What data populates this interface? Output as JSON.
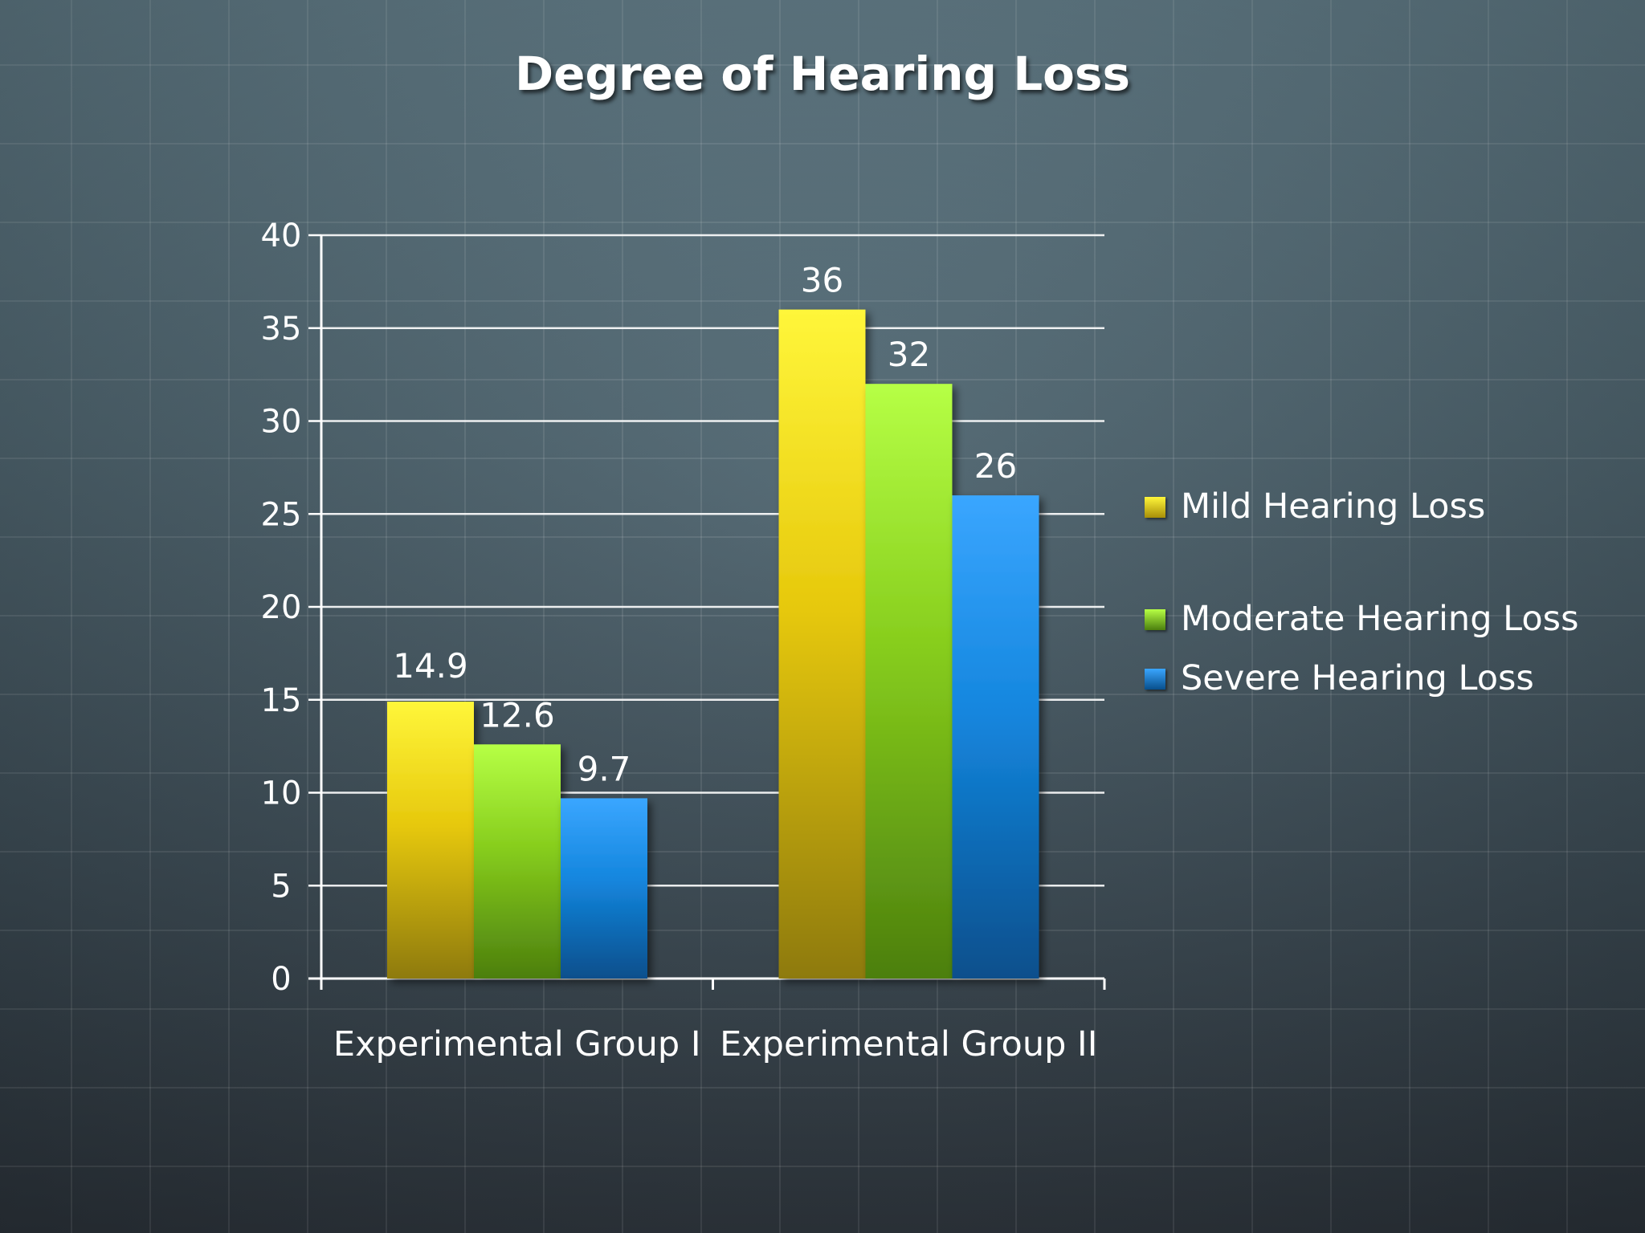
{
  "chart_data": {
    "type": "bar",
    "title": "Degree of Hearing Loss",
    "categories": [
      "Experimental Group I",
      "Experimental Group II"
    ],
    "series": [
      {
        "name": "Mild Hearing Loss",
        "values": [
          14.9,
          36
        ],
        "color": "#f2d21a"
      },
      {
        "name": "Moderate Hearing Loss",
        "values": [
          12.6,
          32
        ],
        "color": "#93d62a"
      },
      {
        "name": "Severe Hearing Loss",
        "values": [
          9.7,
          26
        ],
        "color": "#1e8ee0"
      }
    ],
    "y_ticks": [
      "0",
      "5",
      "10",
      "15",
      "20",
      "25",
      "30",
      "35",
      "40"
    ],
    "data_labels": [
      [
        "14.9",
        "36"
      ],
      [
        "12.6",
        "32"
      ],
      [
        "9.7",
        "26"
      ]
    ],
    "ylim": [
      0,
      40
    ],
    "grid": true,
    "legend": "right"
  }
}
